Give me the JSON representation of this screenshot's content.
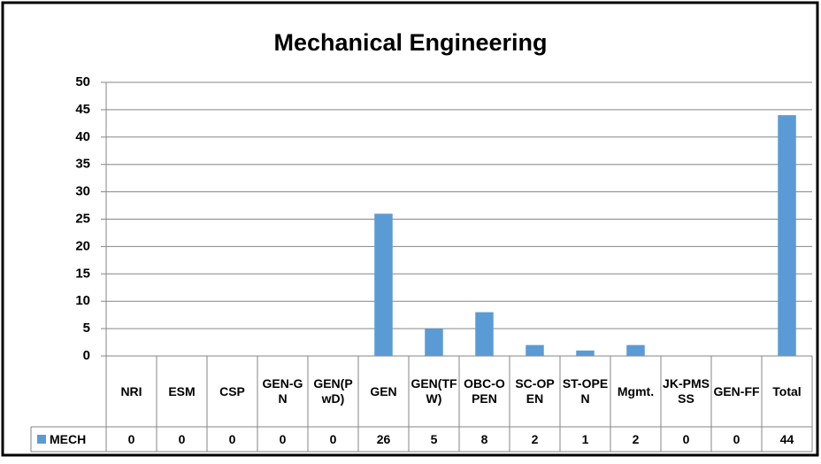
{
  "chart_data": {
    "type": "bar",
    "title": "Mechanical Engineering",
    "categories": [
      "NRI",
      "ESM",
      "CSP",
      "GEN-GN",
      "GEN(PwD)",
      "GEN",
      "GEN(TFW)",
      "OBC-OPEN",
      "SC-OPEN",
      "ST-OPEN",
      "Mgmt.",
      "JK-PMSSS",
      "GEN-FF",
      "Total"
    ],
    "series": [
      {
        "name": "MECH",
        "color": "#5b9bd5",
        "values": [
          0,
          0,
          0,
          0,
          0,
          26,
          5,
          8,
          2,
          1,
          2,
          0,
          0,
          44
        ]
      }
    ],
    "ylim": [
      0,
      50
    ],
    "yticks": [
      0,
      5,
      10,
      15,
      20,
      25,
      30,
      35,
      40,
      45,
      50
    ],
    "grid": true,
    "data_table": true
  }
}
